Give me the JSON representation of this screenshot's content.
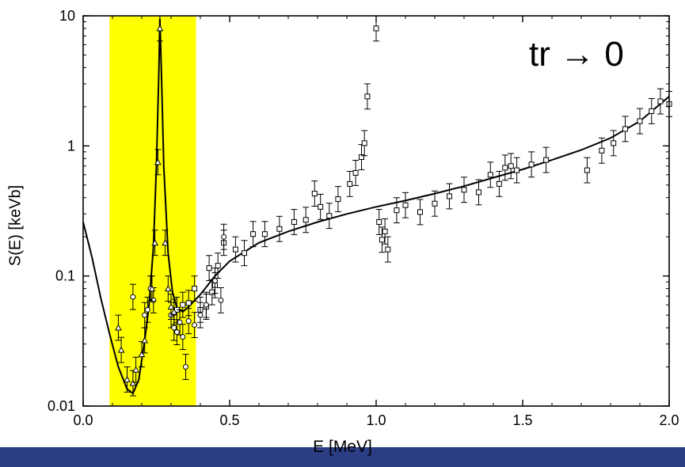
{
  "chart_data": {
    "type": "scatter",
    "xlabel": "E [MeV]",
    "ylabel": "S(E) [keVb]",
    "annotation": "tr → 0",
    "xlim": [
      0.0,
      2.0
    ],
    "ylim": [
      0.01,
      10
    ],
    "y_scale": "log",
    "x_ticks": [
      "0.0",
      "0.5",
      "1.0",
      "1.5",
      "2.0"
    ],
    "y_ticks": [
      "0.01",
      "0.1",
      "1",
      "10"
    ],
    "grid": false,
    "highlight_region": {
      "x_from": 0.09,
      "x_to": 0.385,
      "color": "#ffff00"
    },
    "series": [
      {
        "marker": "square",
        "points": [
          [
            0.32,
            0.055
          ],
          [
            0.34,
            0.06
          ],
          [
            0.36,
            0.062
          ],
          [
            0.38,
            0.08
          ],
          [
            0.4,
            0.055
          ],
          [
            0.42,
            0.058
          ],
          [
            0.43,
            0.115
          ],
          [
            0.44,
            0.075
          ],
          [
            0.45,
            0.085
          ],
          [
            0.46,
            0.12
          ],
          [
            0.48,
            0.18
          ],
          [
            0.52,
            0.16
          ],
          [
            0.55,
            0.15
          ],
          [
            0.58,
            0.21
          ],
          [
            0.62,
            0.21
          ],
          [
            0.67,
            0.23
          ],
          [
            0.72,
            0.26
          ],
          [
            0.76,
            0.27
          ],
          [
            0.79,
            0.43
          ],
          [
            0.81,
            0.34
          ],
          [
            0.84,
            0.29
          ],
          [
            0.87,
            0.39
          ],
          [
            0.91,
            0.51
          ],
          [
            0.93,
            0.62
          ],
          [
            0.95,
            0.82
          ],
          [
            0.96,
            1.05
          ],
          [
            0.97,
            2.4
          ],
          [
            1.0,
            8.0
          ],
          [
            1.01,
            0.26
          ],
          [
            1.02,
            0.19
          ],
          [
            1.03,
            0.22
          ],
          [
            1.04,
            0.16
          ],
          [
            1.07,
            0.32
          ],
          [
            1.1,
            0.35
          ],
          [
            1.15,
            0.31
          ],
          [
            1.2,
            0.36
          ],
          [
            1.25,
            0.41
          ],
          [
            1.3,
            0.46
          ],
          [
            1.35,
            0.44
          ],
          [
            1.39,
            0.6
          ],
          [
            1.42,
            0.51
          ],
          [
            1.44,
            0.68
          ],
          [
            1.46,
            0.7
          ],
          [
            1.48,
            0.65
          ],
          [
            1.53,
            0.72
          ],
          [
            1.58,
            0.78
          ],
          [
            1.72,
            0.65
          ],
          [
            1.77,
            0.92
          ],
          [
            1.81,
            1.05
          ],
          [
            1.85,
            1.35
          ],
          [
            1.9,
            1.55
          ],
          [
            1.94,
            1.85
          ],
          [
            1.97,
            2.2
          ],
          [
            2.0,
            2.1
          ]
        ]
      },
      {
        "marker": "circle",
        "points": [
          [
            0.17,
            0.069
          ],
          [
            0.21,
            0.05
          ],
          [
            0.22,
            0.055
          ],
          [
            0.23,
            0.08
          ],
          [
            0.24,
            0.065
          ],
          [
            0.3,
            0.05
          ],
          [
            0.31,
            0.04
          ],
          [
            0.32,
            0.037
          ],
          [
            0.33,
            0.044
          ],
          [
            0.34,
            0.034
          ],
          [
            0.35,
            0.02
          ],
          [
            0.36,
            0.045
          ],
          [
            0.38,
            0.042
          ],
          [
            0.4,
            0.05
          ],
          [
            0.42,
            0.06
          ],
          [
            0.45,
            0.092
          ],
          [
            0.47,
            0.065
          ],
          [
            0.48,
            0.2
          ]
        ]
      },
      {
        "marker": "triangle",
        "points": [
          [
            0.12,
            0.04
          ],
          [
            0.13,
            0.027
          ],
          [
            0.15,
            0.016
          ],
          [
            0.17,
            0.015
          ],
          [
            0.18,
            0.019
          ],
          [
            0.2,
            0.025
          ],
          [
            0.21,
            0.032
          ],
          [
            0.235,
            0.08
          ],
          [
            0.245,
            0.18
          ],
          [
            0.255,
            0.75
          ],
          [
            0.262,
            8.0
          ],
          [
            0.28,
            0.18
          ],
          [
            0.29,
            0.08
          ],
          [
            0.3,
            0.058
          ],
          [
            0.31,
            0.053
          ]
        ]
      },
      {
        "marker": "line",
        "points": [
          [
            0.0,
            0.26
          ],
          [
            0.03,
            0.14
          ],
          [
            0.06,
            0.068
          ],
          [
            0.09,
            0.036
          ],
          [
            0.12,
            0.02
          ],
          [
            0.15,
            0.0135
          ],
          [
            0.17,
            0.0125
          ],
          [
            0.19,
            0.016
          ],
          [
            0.21,
            0.032
          ],
          [
            0.225,
            0.06
          ],
          [
            0.24,
            0.17
          ],
          [
            0.25,
            0.7
          ],
          [
            0.258,
            3.5
          ],
          [
            0.262,
            9.5
          ],
          [
            0.268,
            3.0
          ],
          [
            0.275,
            0.7
          ],
          [
            0.29,
            0.15
          ],
          [
            0.305,
            0.075
          ],
          [
            0.32,
            0.057
          ],
          [
            0.34,
            0.053
          ],
          [
            0.36,
            0.058
          ],
          [
            0.4,
            0.072
          ],
          [
            0.45,
            0.1
          ],
          [
            0.5,
            0.13
          ],
          [
            0.6,
            0.18
          ],
          [
            0.7,
            0.22
          ],
          [
            0.8,
            0.26
          ],
          [
            0.9,
            0.3
          ],
          [
            1.0,
            0.34
          ],
          [
            1.1,
            0.38
          ],
          [
            1.2,
            0.43
          ],
          [
            1.3,
            0.49
          ],
          [
            1.4,
            0.57
          ],
          [
            1.5,
            0.66
          ],
          [
            1.6,
            0.78
          ],
          [
            1.7,
            0.93
          ],
          [
            1.8,
            1.15
          ],
          [
            1.9,
            1.55
          ],
          [
            2.0,
            2.4
          ]
        ]
      }
    ]
  }
}
